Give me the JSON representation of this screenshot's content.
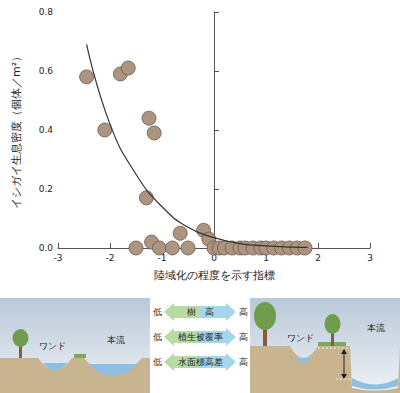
{
  "chart_data": {
    "type": "scatter",
    "x_label": "陸域化の程度を示す指標",
    "y_label": "イシガイ生息密度（個体／m²）",
    "xlim": [
      -3,
      3
    ],
    "xticks": [
      -3,
      -2,
      -1,
      0,
      1,
      2,
      3
    ],
    "ylim": [
      0,
      0.8
    ],
    "yticks": [
      {
        "value": 0,
        "label": "0.0"
      },
      0.2,
      0.4,
      0.6,
      0.8
    ],
    "grid": false,
    "series": [
      {
        "type": "scatter",
        "color": "#ab9480",
        "marker": "circle",
        "x": [
          -2.45,
          -2.1,
          -1.8,
          -1.65,
          -1.5,
          -1.3,
          -1.25,
          -1.2,
          -1.15,
          -1.05,
          -0.8,
          -0.65,
          -0.5,
          -0.2,
          -0.1,
          0.0,
          0.1,
          0.2,
          0.35,
          0.5,
          0.6,
          0.75,
          0.9,
          1.0,
          1.15,
          1.3,
          1.45,
          1.6,
          1.75
        ],
        "values": [
          0.58,
          0.4,
          0.59,
          0.61,
          0.0,
          0.17,
          0.44,
          0.02,
          0.39,
          0.0,
          0.0,
          0.05,
          0.0,
          0.06,
          0.03,
          0.0,
          0.0,
          0.0,
          0.0,
          0.0,
          0.0,
          0.0,
          0.0,
          0.0,
          0.0,
          0.0,
          0.0,
          0.0,
          0.0
        ]
      },
      {
        "type": "line",
        "color": "#333333",
        "line_style": "solid",
        "x": [
          -2.45,
          -2.0,
          -1.5,
          -1.0,
          -0.5,
          0.0,
          0.5,
          1.0,
          1.5,
          1.8
        ],
        "values": [
          0.69,
          0.42,
          0.25,
          0.14,
          0.07,
          0.035,
          0.015,
          0.007,
          0.003,
          0.002
        ]
      }
    ]
  },
  "diagram": {
    "left_panel": {
      "labels": [
        "ワンド",
        "本流"
      ]
    },
    "right_panel": {
      "labels": [
        "ワンド",
        "本流"
      ]
    },
    "rows": [
      {
        "low": "低",
        "label": "樹　高",
        "high": "高"
      },
      {
        "low": "低",
        "label": "植生被覆率",
        "high": "高"
      },
      {
        "low": "低",
        "label": "水面標高差",
        "high": "高"
      }
    ]
  }
}
